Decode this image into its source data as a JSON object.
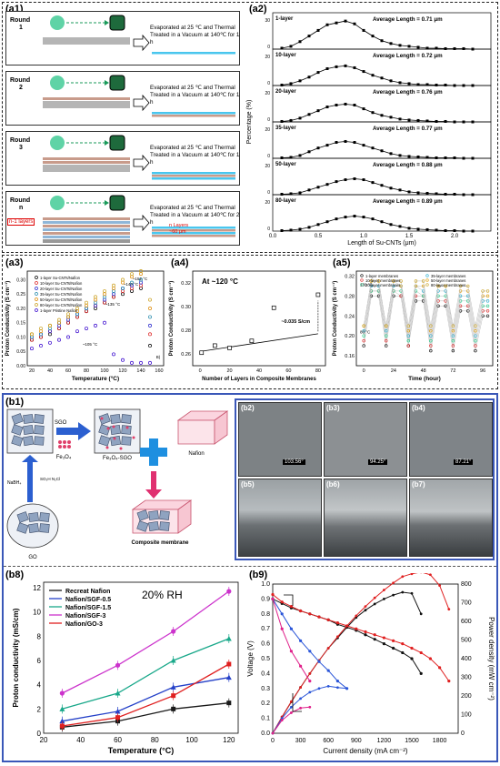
{
  "panels": {
    "a1": "(a1)",
    "a2": "(a2)",
    "a3": "(a3)",
    "a4": "(a4)",
    "a5": "(a5)",
    "b1": "(b1)",
    "b2": "(b2)",
    "b3": "(b3)",
    "b4": "(b4)",
    "b5": "(b5)",
    "b6": "(b6)",
    "b7": "(b7)",
    "b8": "(b8)",
    "b9": "(b9)"
  },
  "a1": {
    "steps": [
      {
        "round": "Round",
        "num": "1",
        "text": "Evaporated at 25 ℃ and Thermal Treated in a Vacuum at 140℃ for 1 h"
      },
      {
        "round": "Round",
        "num": "2",
        "text": "Evaporated at 25 ℃ and Thermal Treated in a Vacuum at 140℃ for 1 h"
      },
      {
        "round": "Round",
        "num": "3",
        "text": "Evaporated at 25 ℃ and Thermal Treated in a Vacuum at 140℃ for 1 h"
      },
      {
        "round": "Round",
        "num": "n",
        "text": "Evaporated at 25 ℃ and Thermal Treated in a Vacuum at 140℃ for 2 h"
      }
    ],
    "n_minus_1": "n-1 layers",
    "n_layers": "n Layers",
    "thickness": "~60 μm"
  },
  "a2": {
    "ylabel": "Percentage (%)",
    "xlabel": "Length of Su-CNTs (μm)",
    "xticks": [
      "0.0",
      "0.5",
      "1.0",
      "1.5",
      "2.0"
    ],
    "rows": [
      {
        "label": "1-layer",
        "avg": "Average Length = 0.71 μm",
        "tick_hi": "30",
        "tick_lo": "0"
      },
      {
        "label": "10-layer",
        "avg": "Average Length = 0.72 μm",
        "tick_hi": "20",
        "tick_lo": "0"
      },
      {
        "label": "20-layer",
        "avg": "Average Length = 0.76 μm",
        "tick_hi": "20",
        "tick_lo": "0"
      },
      {
        "label": "35-layer",
        "avg": "Average Length = 0.77 μm",
        "tick_hi": "20",
        "tick_lo": "0"
      },
      {
        "label": "50-layer",
        "avg": "Average Length = 0.88 μm",
        "tick_hi": "20",
        "tick_lo": "0"
      },
      {
        "label": "80-layer",
        "avg": "Average Length = 0.89 μm",
        "tick_hi": "20",
        "tick_lo": "0"
      }
    ]
  },
  "a3": {
    "ylabel": "Proton Conductivity (S cm⁻¹)",
    "xlabel": "Temperature (°C)",
    "legend": [
      "1-layer Su-CNTs/Nafion",
      "10-layer Su-CNTs/Nafion",
      "20-layer Su-CNTs/Nafion",
      "35-layer Su-CNTs/Nafion",
      "50-layer Su-CNTs/Nafion",
      "80-layer Su-CNTs/Nafion",
      "1-layer Pristine Nafion"
    ],
    "ann": [
      "~152 °C",
      "~140 °C",
      "~135 °C",
      "~105 °C",
      "B)"
    ],
    "yticks": [
      "0.00",
      "0.05",
      "0.10",
      "0.15",
      "0.20",
      "0.25",
      "0.30"
    ],
    "xticks": [
      "20",
      "40",
      "60",
      "80",
      "100",
      "120",
      "140",
      "160"
    ]
  },
  "a4": {
    "title": "At ~120 °C",
    "ylabel": "Proton Conductivity (S cm⁻¹)",
    "xlabel": "Number of Layers in Composite Membranes",
    "ann": "~0.035 S/cm",
    "yticks": [
      "0.26",
      "0.28",
      "0.30",
      "0.32"
    ],
    "xticks": [
      "0",
      "20",
      "40",
      "60",
      "80"
    ]
  },
  "a5": {
    "ylabel": "Proton Conductivity (S cm⁻¹)",
    "xlabel": "Time (hour)",
    "legend": [
      "1-layer membranes",
      "10-layer membranes",
      "20-layer membranes",
      "35-layer membranes",
      "50-layer membranes",
      "80-layer membranes"
    ],
    "ann": [
      "130 °C",
      "80 °C"
    ],
    "yticks": [
      "0.16",
      "0.20",
      "0.24",
      "0.28",
      "0.32"
    ],
    "xticks": [
      "0",
      "24",
      "48",
      "72",
      "96"
    ]
  },
  "b1": {
    "sgo": "SGO",
    "fe": "Fe₃O₄",
    "fe_sgo": "Fe₃O₄-SGO",
    "nafion": "Nafion",
    "nabh4": "NaBH₄",
    "reagent": "SO₃H\nN₂Cl",
    "composite": "Composite membrane",
    "go": "GO"
  },
  "b2": {
    "angle": "103.56°"
  },
  "b3": {
    "angle": "94.25°"
  },
  "b4": {
    "angle": "87.21°"
  },
  "b8": {
    "rh": "20% RH",
    "ylabel": "Proton conductivity (mS/cm)",
    "xlabel": "Temperature (°C)",
    "xticks": [
      "20",
      "40",
      "60",
      "80",
      "100",
      "120"
    ],
    "yticks": [
      "0",
      "2",
      "4",
      "6",
      "8",
      "10",
      "12"
    ]
  },
  "b9": {
    "ylabel_left": "Voltage (V)",
    "ylabel_right": "Power density (mW cm⁻²)",
    "xlabel": "Current density (mA cm⁻²)",
    "xticks": [
      "0",
      "300",
      "600",
      "900",
      "1200",
      "1500",
      "1800"
    ],
    "yticks_left": [
      "0.0",
      "0.1",
      "0.2",
      "0.3",
      "0.4",
      "0.5",
      "0.6",
      "0.7",
      "0.8",
      "0.9",
      "1.0"
    ],
    "yticks_right": [
      "0",
      "100",
      "200",
      "300",
      "400",
      "500",
      "600",
      "700",
      "800"
    ]
  },
  "chart_data": [
    {
      "type": "line",
      "title": "",
      "xlabel": "Length of Su-CNTs (μm)",
      "ylabel": "Percentage (%)",
      "x": [
        0.1,
        0.2,
        0.3,
        0.4,
        0.5,
        0.6,
        0.7,
        0.8,
        0.9,
        1.0,
        1.1,
        1.2,
        1.3,
        1.4,
        1.5,
        1.6,
        1.7,
        1.8,
        1.9,
        2.0,
        2.1,
        2.2
      ],
      "series": [
        {
          "name": "1-layer",
          "values": [
            1,
            3,
            8,
            14,
            20,
            26,
            28,
            30,
            27,
            20,
            14,
            9,
            6,
            4,
            3,
            2,
            1,
            1,
            0.5,
            0.5,
            0.5,
            0
          ]
        },
        {
          "name": "10-layer",
          "values": [
            0.5,
            2,
            5,
            9,
            14,
            18,
            20,
            21,
            19,
            15,
            11,
            8,
            5,
            3,
            2,
            1,
            1,
            0.5,
            0.5,
            0,
            0,
            0
          ]
        },
        {
          "name": "20-layer",
          "values": [
            0.5,
            1.5,
            4,
            8,
            12,
            16,
            18,
            19,
            18,
            14,
            10,
            7,
            5,
            3,
            2,
            1.5,
            1,
            0.5,
            0.5,
            0,
            0,
            0
          ]
        },
        {
          "name": "35-layer",
          "values": [
            0.5,
            1,
            3,
            7,
            11,
            14,
            17,
            18,
            17,
            14,
            11,
            8,
            5,
            3,
            2,
            1.5,
            1,
            0.5,
            0.5,
            0.5,
            0,
            0
          ]
        },
        {
          "name": "50-layer",
          "values": [
            0.5,
            1,
            2,
            5,
            8,
            11,
            14,
            16,
            17,
            16,
            13,
            10,
            7,
            5,
            3,
            2,
            1.5,
            1,
            0.5,
            0.5,
            0,
            0
          ]
        },
        {
          "name": "80-layer",
          "values": [
            0.5,
            1,
            2,
            4,
            7,
            10,
            13,
            15,
            16,
            15,
            13,
            10,
            7,
            5,
            3,
            2,
            1.5,
            1,
            0.5,
            0.5,
            0,
            0
          ]
        }
      ],
      "ylim": [
        0,
        35
      ],
      "xlim": [
        0,
        2.4
      ]
    },
    {
      "type": "scatter",
      "title": "",
      "xlabel": "Temperature (°C)",
      "ylabel": "Proton Conductivity (S cm⁻¹)",
      "x": [
        20,
        30,
        40,
        50,
        60,
        70,
        80,
        90,
        100,
        110,
        120,
        130,
        140,
        150
      ],
      "series": [
        {
          "name": "1-layer Su-CNTs/Nafion",
          "values": [
            0.09,
            0.1,
            0.11,
            0.13,
            0.15,
            0.17,
            0.19,
            0.2,
            0.22,
            0.24,
            0.25,
            0.26,
            0.27,
            0.07
          ]
        },
        {
          "name": "10-layer Su-CNTs/Nafion",
          "values": [
            0.09,
            0.1,
            0.12,
            0.13,
            0.15,
            0.17,
            0.19,
            0.21,
            0.22,
            0.24,
            0.26,
            0.27,
            0.28,
            0.11
          ]
        },
        {
          "name": "20-layer Su-CNTs/Nafion",
          "values": [
            0.1,
            0.11,
            0.12,
            0.14,
            0.16,
            0.18,
            0.2,
            0.21,
            0.23,
            0.25,
            0.27,
            0.28,
            0.29,
            0.14
          ]
        },
        {
          "name": "35-layer Su-CNTs/Nafion",
          "values": [
            0.1,
            0.11,
            0.13,
            0.15,
            0.17,
            0.18,
            0.2,
            0.22,
            0.24,
            0.26,
            0.27,
            0.29,
            0.3,
            0.17
          ]
        },
        {
          "name": "50-layer Su-CNTs/Nafion",
          "values": [
            0.11,
            0.12,
            0.14,
            0.15,
            0.17,
            0.19,
            0.21,
            0.23,
            0.25,
            0.27,
            0.29,
            0.31,
            0.32,
            0.2
          ]
        },
        {
          "name": "80-layer Su-CNTs/Nafion",
          "values": [
            0.11,
            0.13,
            0.14,
            0.16,
            0.18,
            0.2,
            0.22,
            0.24,
            0.26,
            0.28,
            0.3,
            0.32,
            0.33,
            0.23
          ]
        },
        {
          "name": "1-layer Pristine Nafion",
          "values": [
            0.06,
            0.07,
            0.08,
            0.09,
            0.1,
            0.12,
            0.13,
            0.14,
            0.15,
            0.04,
            0.02,
            0.01,
            0.01,
            0.01
          ]
        }
      ],
      "ylim": [
        0,
        0.33
      ],
      "xlim": [
        15,
        165
      ]
    },
    {
      "type": "scatter",
      "title": "At ~120 °C",
      "xlabel": "Number of Layers in Composite Membranes",
      "ylabel": "Proton Conductivity (S cm⁻¹)",
      "x": [
        1,
        10,
        20,
        35,
        50,
        80
      ],
      "values": [
        0.261,
        0.267,
        0.265,
        0.271,
        0.299,
        0.31
      ],
      "ylim": [
        0.25,
        0.33
      ],
      "xlim": [
        -5,
        85
      ]
    },
    {
      "type": "line",
      "title": "",
      "xlabel": "Time (hour)",
      "ylabel": "Proton Conductivity (S cm⁻¹)",
      "x": [
        0,
        6,
        12,
        18,
        24,
        30,
        36,
        42,
        48,
        54,
        60,
        66,
        72,
        78,
        84,
        90,
        96,
        100
      ],
      "series": [
        {
          "name": "1-layer membranes",
          "values": [
            0.18,
            0.28,
            0.28,
            0.18,
            0.28,
            0.28,
            0.18,
            0.27,
            0.27,
            0.17,
            0.26,
            0.26,
            0.17,
            0.25,
            0.25,
            0.17,
            0.24,
            0.24
          ]
        },
        {
          "name": "10-layer membranes",
          "values": [
            0.19,
            0.29,
            0.29,
            0.19,
            0.29,
            0.28,
            0.18,
            0.28,
            0.28,
            0.18,
            0.27,
            0.27,
            0.18,
            0.26,
            0.26,
            0.18,
            0.25,
            0.25
          ]
        },
        {
          "name": "20-layer membranes",
          "values": [
            0.2,
            0.29,
            0.29,
            0.2,
            0.29,
            0.29,
            0.19,
            0.29,
            0.28,
            0.19,
            0.28,
            0.28,
            0.19,
            0.27,
            0.27,
            0.19,
            0.26,
            0.26
          ]
        },
        {
          "name": "35-layer membranes",
          "values": [
            0.21,
            0.3,
            0.3,
            0.21,
            0.3,
            0.3,
            0.2,
            0.3,
            0.29,
            0.2,
            0.29,
            0.29,
            0.2,
            0.28,
            0.28,
            0.2,
            0.27,
            0.27
          ]
        },
        {
          "name": "50-layer membranes",
          "values": [
            0.22,
            0.31,
            0.31,
            0.22,
            0.31,
            0.3,
            0.21,
            0.3,
            0.3,
            0.21,
            0.3,
            0.3,
            0.21,
            0.29,
            0.29,
            0.21,
            0.28,
            0.28
          ]
        },
        {
          "name": "80-layer membranes",
          "values": [
            0.22,
            0.31,
            0.31,
            0.22,
            0.31,
            0.31,
            0.22,
            0.31,
            0.31,
            0.22,
            0.3,
            0.3,
            0.22,
            0.3,
            0.3,
            0.22,
            0.29,
            0.29
          ]
        }
      ],
      "ylim": [
        0.14,
        0.33
      ],
      "xlim": [
        -6,
        104
      ]
    },
    {
      "type": "line",
      "title": "",
      "xlabel": "Temperature (°C)",
      "ylabel": "Proton conductivity (mS/cm)",
      "x": [
        30,
        60,
        90,
        120
      ],
      "series": [
        {
          "name": "Recreat Nafion",
          "values": [
            0.5,
            1.0,
            2.0,
            2.5
          ]
        },
        {
          "name": "Nafion/SGF-0.5",
          "values": [
            1.0,
            1.8,
            3.8,
            4.6
          ]
        },
        {
          "name": "Nafion/SGF-1.5",
          "values": [
            2.0,
            3.3,
            6.0,
            7.8
          ]
        },
        {
          "name": "Nafion/SGF-3",
          "values": [
            3.3,
            5.6,
            8.4,
            11.7
          ]
        },
        {
          "name": "Nafion/GO-3",
          "values": [
            0.6,
            1.3,
            3.1,
            5.7
          ]
        }
      ],
      "ylim": [
        0,
        12
      ],
      "xlim": [
        20,
        125
      ]
    },
    {
      "type": "line",
      "title": "",
      "xlabel": "Current density (mA cm⁻²)",
      "ylabel": "Voltage (V)",
      "x": [
        0,
        100,
        200,
        300,
        400,
        500,
        600,
        700,
        800,
        900,
        1000,
        1100,
        1200,
        1300,
        1400,
        1500,
        1600,
        1700,
        1800,
        1900
      ],
      "series": [
        {
          "name": "black-voltage",
          "values": [
            0.9,
            0.87,
            0.84,
            0.82,
            0.8,
            0.78,
            0.76,
            0.73,
            0.71,
            0.69,
            0.66,
            0.63,
            0.6,
            0.57,
            0.54,
            0.5,
            0.4,
            null,
            null,
            null
          ]
        },
        {
          "name": "red-voltage",
          "values": [
            0.93,
            0.88,
            0.85,
            0.82,
            0.8,
            0.78,
            0.76,
            0.74,
            0.72,
            0.7,
            0.68,
            0.66,
            0.64,
            0.62,
            0.6,
            0.57,
            0.54,
            0.5,
            0.44,
            0.35
          ]
        },
        {
          "name": "blue-voltage",
          "values": [
            0.9,
            0.8,
            0.7,
            0.62,
            0.55,
            0.48,
            0.42,
            0.35,
            0.3,
            null,
            null,
            null,
            null,
            null,
            null,
            null,
            null,
            null,
            null,
            null
          ]
        },
        {
          "name": "magenta-voltage",
          "values": [
            0.9,
            0.7,
            0.55,
            0.45,
            0.35,
            null,
            null,
            null,
            null,
            null,
            null,
            null,
            null,
            null,
            null,
            null,
            null,
            null,
            null,
            null
          ]
        }
      ],
      "ylim": [
        0,
        1.0
      ],
      "xlim": [
        0,
        2000
      ]
    }
  ]
}
